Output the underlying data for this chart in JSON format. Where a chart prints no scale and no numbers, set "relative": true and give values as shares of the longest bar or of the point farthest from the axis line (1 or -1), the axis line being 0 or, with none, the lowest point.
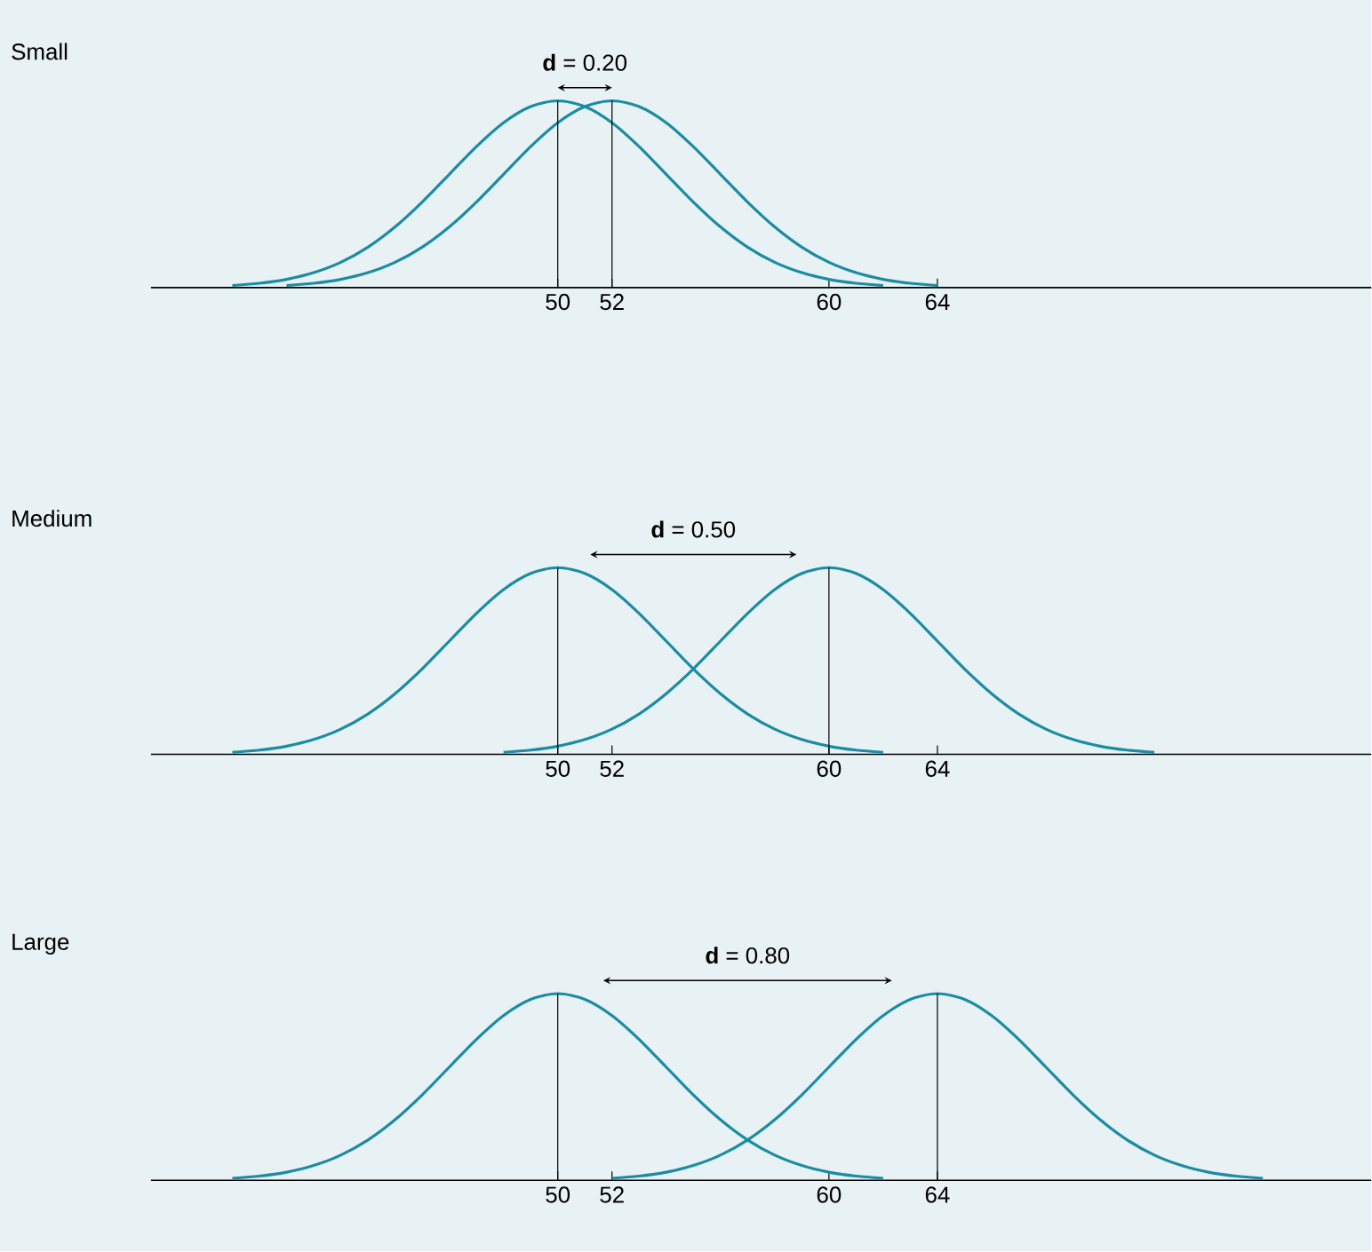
{
  "chart_data": [
    {
      "type": "line",
      "title": "Small",
      "relative": true,
      "xlim": [
        35,
        80
      ],
      "xticks": [
        50,
        52,
        60,
        64
      ],
      "tick_labels": "x",
      "grid": false,
      "marker": "none",
      "line_style": "solid",
      "series": [
        {
          "color": "#1a8ca3",
          "x": [
            38,
            39,
            40,
            41,
            42,
            43,
            44,
            45,
            46,
            47,
            48,
            49,
            50,
            51,
            52,
            53,
            54,
            55,
            56,
            57,
            58,
            59,
            60,
            61,
            62
          ],
          "values": [
            0.0111,
            0.0228,
            0.0439,
            0.0796,
            0.1353,
            0.2163,
            0.3247,
            0.4578,
            0.6065,
            0.7548,
            0.8825,
            0.969,
            1,
            0.969,
            0.8825,
            0.7548,
            0.6065,
            0.4578,
            0.3247,
            0.2163,
            0.1353,
            0.0796,
            0.0439,
            0.0228,
            0.0111
          ]
        },
        {
          "color": "#1a8ca3",
          "x": [
            40,
            41,
            42,
            43,
            44,
            45,
            46,
            47,
            48,
            49,
            50,
            51,
            52,
            53,
            54,
            55,
            56,
            57,
            58,
            59,
            60,
            61,
            62,
            63,
            64
          ],
          "values": [
            0.0111,
            0.0228,
            0.0439,
            0.0796,
            0.1353,
            0.2163,
            0.3247,
            0.4578,
            0.6065,
            0.7548,
            0.8825,
            0.969,
            1,
            0.969,
            0.8825,
            0.7548,
            0.6065,
            0.4578,
            0.3247,
            0.2163,
            0.1353,
            0.0796,
            0.0439,
            0.0228,
            0.0111
          ]
        }
      ],
      "ref_lines": [
        {
          "axis": "x",
          "value": 50,
          "color": "#000000"
        },
        {
          "axis": "x",
          "value": 52,
          "color": "#000000"
        }
      ],
      "annotations": [
        "**d** = 0.20"
      ]
    },
    {
      "type": "line",
      "title": "Medium",
      "relative": true,
      "xlim": [
        35,
        80
      ],
      "xticks": [
        50,
        52,
        60,
        64
      ],
      "tick_labels": "x",
      "grid": false,
      "marker": "none",
      "line_style": "solid",
      "series": [
        {
          "color": "#1a8ca3",
          "x": [
            38,
            39,
            40,
            41,
            42,
            43,
            44,
            45,
            46,
            47,
            48,
            49,
            50,
            51,
            52,
            53,
            54,
            55,
            56,
            57,
            58,
            59,
            60,
            61,
            62
          ],
          "values": [
            0.0111,
            0.0228,
            0.0439,
            0.0796,
            0.1353,
            0.2163,
            0.3247,
            0.4578,
            0.6065,
            0.7548,
            0.8825,
            0.969,
            1,
            0.969,
            0.8825,
            0.7548,
            0.6065,
            0.4578,
            0.3247,
            0.2163,
            0.1353,
            0.0796,
            0.0439,
            0.0228,
            0.0111
          ]
        },
        {
          "color": "#1a8ca3",
          "x": [
            48,
            49,
            50,
            51,
            52,
            53,
            54,
            55,
            56,
            57,
            58,
            59,
            60,
            61,
            62,
            63,
            64,
            65,
            66,
            67,
            68,
            69,
            70,
            71,
            72
          ],
          "values": [
            0.0111,
            0.0228,
            0.0439,
            0.0796,
            0.1353,
            0.2163,
            0.3247,
            0.4578,
            0.6065,
            0.7548,
            0.8825,
            0.969,
            1,
            0.969,
            0.8825,
            0.7548,
            0.6065,
            0.4578,
            0.3247,
            0.2163,
            0.1353,
            0.0796,
            0.0439,
            0.0228,
            0.0111
          ]
        }
      ],
      "ref_lines": [
        {
          "axis": "x",
          "value": 50,
          "color": "#000000"
        },
        {
          "axis": "x",
          "value": 60,
          "color": "#000000"
        }
      ],
      "annotations": [
        "**d** = 0.50"
      ]
    },
    {
      "type": "line",
      "title": "Large",
      "relative": true,
      "xlim": [
        35,
        80
      ],
      "xticks": [
        50,
        52,
        60,
        64
      ],
      "tick_labels": "x",
      "grid": false,
      "marker": "none",
      "line_style": "solid",
      "series": [
        {
          "color": "#1a8ca3",
          "x": [
            38,
            39,
            40,
            41,
            42,
            43,
            44,
            45,
            46,
            47,
            48,
            49,
            50,
            51,
            52,
            53,
            54,
            55,
            56,
            57,
            58,
            59,
            60,
            61,
            62
          ],
          "values": [
            0.0111,
            0.0228,
            0.0439,
            0.0796,
            0.1353,
            0.2163,
            0.3247,
            0.4578,
            0.6065,
            0.7548,
            0.8825,
            0.969,
            1,
            0.969,
            0.8825,
            0.7548,
            0.6065,
            0.4578,
            0.3247,
            0.2163,
            0.1353,
            0.0796,
            0.0439,
            0.0228,
            0.0111
          ]
        },
        {
          "color": "#1a8ca3",
          "x": [
            52,
            53,
            54,
            55,
            56,
            57,
            58,
            59,
            60,
            61,
            62,
            63,
            64,
            65,
            66,
            67,
            68,
            69,
            70,
            71,
            72,
            73,
            74,
            75,
            76
          ],
          "values": [
            0.0111,
            0.0228,
            0.0439,
            0.0796,
            0.1353,
            0.2163,
            0.3247,
            0.4578,
            0.6065,
            0.7548,
            0.8825,
            0.969,
            1,
            0.969,
            0.8825,
            0.7548,
            0.6065,
            0.4578,
            0.3247,
            0.2163,
            0.1353,
            0.0796,
            0.0439,
            0.0228,
            0.0111
          ]
        }
      ],
      "ref_lines": [
        {
          "axis": "x",
          "value": 50,
          "color": "#000000"
        },
        {
          "axis": "x",
          "value": 64,
          "color": "#000000"
        }
      ],
      "annotations": [
        "**d** = 0.80"
      ]
    }
  ]
}
